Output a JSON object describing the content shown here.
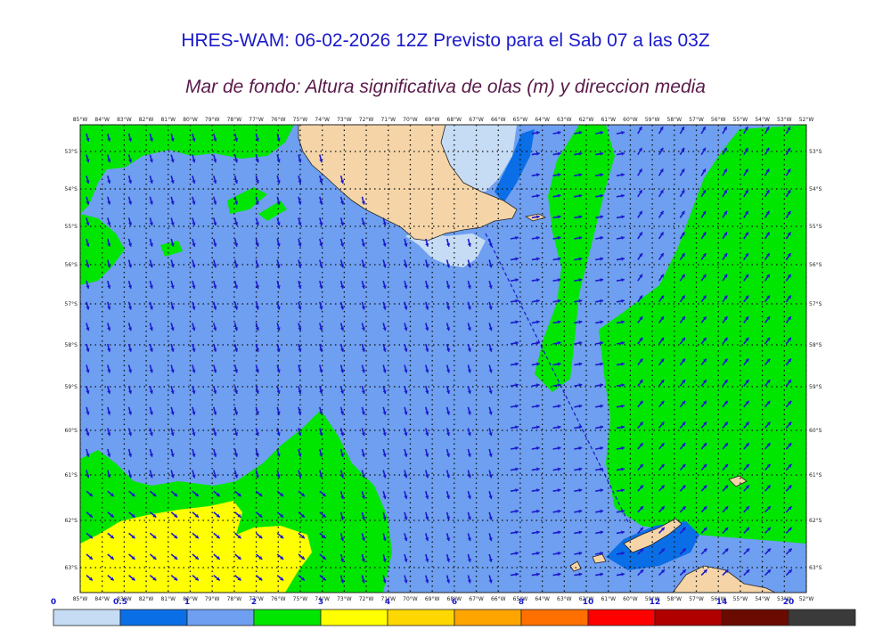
{
  "header": {
    "title": "HRES-WAM: 06-02-2026 12Z Previsto para el Sab 07 a las 03Z",
    "subtitle": "Mar de fondo: Altura significativa de olas (m) y direccion media"
  },
  "map": {
    "lon_labels": [
      "85°W",
      "84°W",
      "83°W",
      "82°W",
      "81°W",
      "80°W",
      "79°W",
      "78°W",
      "77°W",
      "76°W",
      "75°W",
      "74°W",
      "73°W",
      "72°W",
      "71°W",
      "70°W",
      "69°W",
      "68°W",
      "67°W",
      "66°W",
      "65°W",
      "64°W",
      "63°W",
      "62°W",
      "61°W",
      "60°W",
      "59°W",
      "58°W",
      "57°W",
      "56°W",
      "55°W",
      "54°W",
      "53°W",
      "52°W"
    ],
    "lat_labels": [
      "53°S",
      "54°S",
      "55°S",
      "56°S",
      "57°S",
      "58°S",
      "59°S",
      "60°S",
      "61°S",
      "62°S",
      "63°S"
    ],
    "colors": {
      "land": "#f5d5a8",
      "coast": "#222222",
      "arrow": "#1a1acc",
      "grid": "#111111",
      "track": "#1a1acc"
    }
  },
  "colorbar": {
    "ticks": [
      "0",
      "0.5",
      "1",
      "2",
      "3",
      "4",
      "6",
      "8",
      "10",
      "12",
      "14",
      "20"
    ],
    "colors": [
      "#c6dcf5",
      "#0a6ee6",
      "#6e9ff0",
      "#00e600",
      "#ffff00",
      "#ffd700",
      "#ffa500",
      "#ff7000",
      "#ff0000",
      "#b00000",
      "#6a0a00",
      "#3a3a3a"
    ]
  }
}
